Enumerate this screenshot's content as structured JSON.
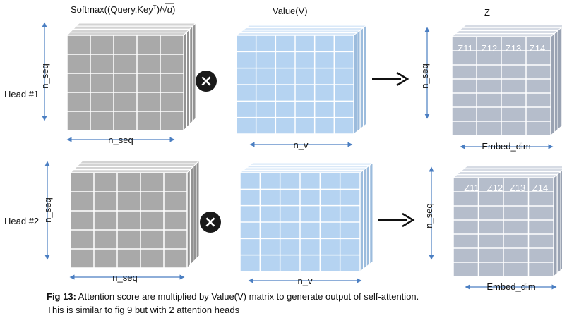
{
  "headers": {
    "softmax": {
      "prefix": "Softmax((Query.Key",
      "superscript": "T",
      "middle": ")/",
      "radicand": "d",
      "suffix": ")"
    },
    "value": "Value(V)",
    "z": "Z"
  },
  "operators": {
    "multiply": "×",
    "arrow": "⟶"
  },
  "heads": [
    {
      "label": "Head #1",
      "softmax_axes": {
        "vertical": "n_seq",
        "horizontal": "n_seq"
      },
      "value_axes": {
        "horizontal": "n_v"
      },
      "z_axes": {
        "vertical": "n_seq",
        "horizontal": "Embed_dim"
      },
      "z_cells": [
        "Z11",
        "Z12",
        "Z13",
        "Z14"
      ]
    },
    {
      "label": "Head #2",
      "softmax_axes": {
        "vertical": "n_seq",
        "horizontal": "n_seq"
      },
      "value_axes": {
        "horizontal": "n_v"
      },
      "z_axes": {
        "vertical": "n_seq",
        "horizontal": "Embed_dim"
      },
      "z_cells": [
        "Z11",
        "Z12",
        "Z13",
        "Z14"
      ]
    }
  ],
  "caption": {
    "bold": "Fig 13:",
    "line1": " Attention score are multiplied by Value(V) matrix to generate output of self-attention.",
    "line2": "This is similar to fig 9 but with 2 attention heads"
  },
  "colors": {
    "gray_front": "#a9a9a9",
    "gray_top": "#d3d3d3",
    "gray_side": "#939393",
    "blue_front": "#b5d3f1",
    "blue_top": "#d9e8f8",
    "blue_side": "#9cbcdd",
    "slate_front": "#b5bdcb",
    "slate_top": "#d6dbe4",
    "slate_side": "#9aa3b3",
    "axis_arrow": "#4a7ec2",
    "badge": "#1a1a1a"
  }
}
